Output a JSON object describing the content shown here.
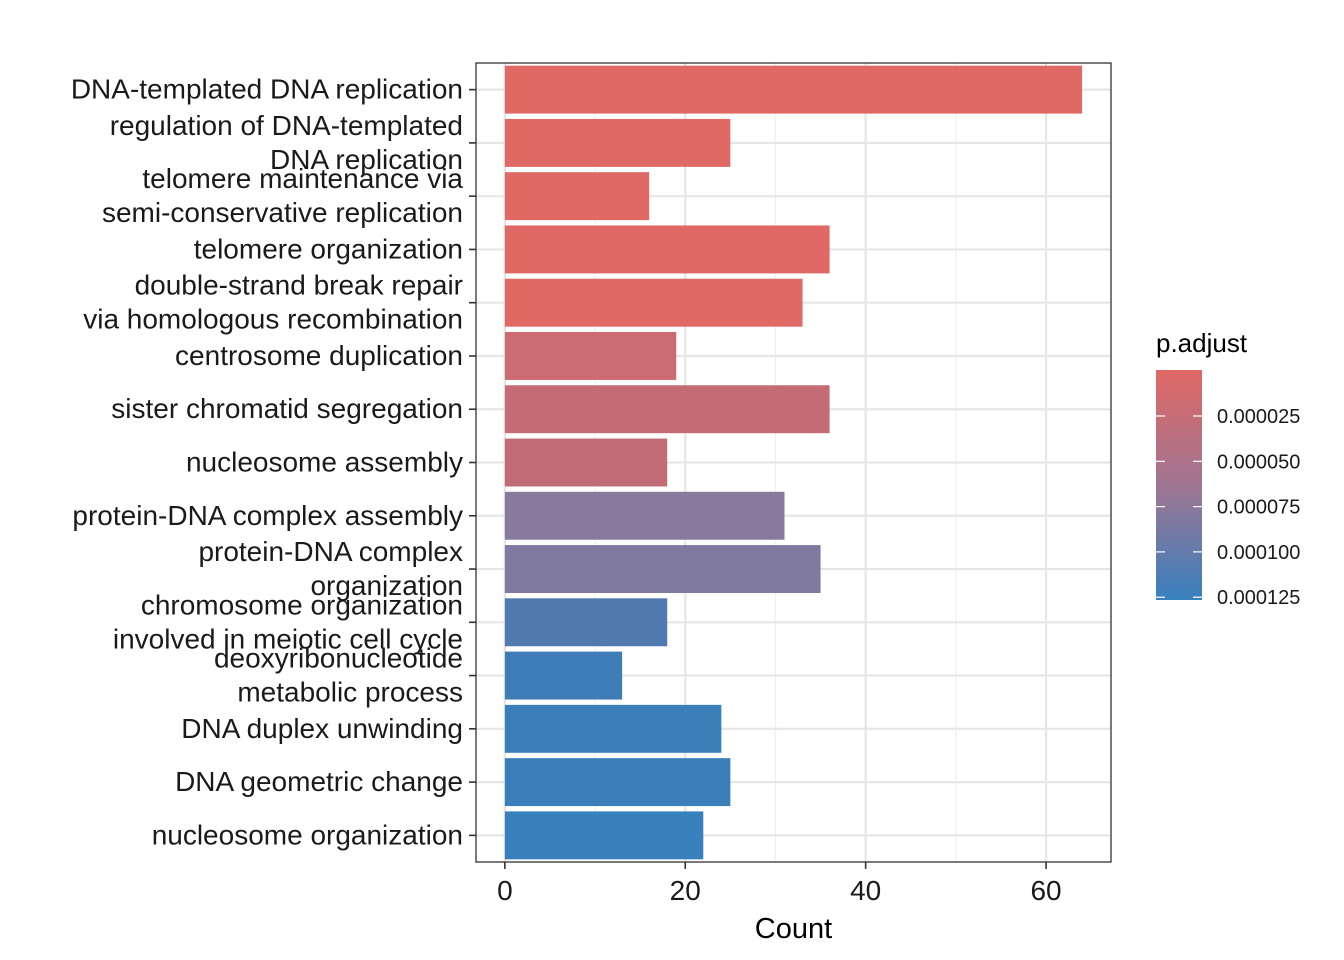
{
  "chart_data": {
    "type": "bar",
    "orientation": "horizontal",
    "categories": [
      [
        "DNA-templated DNA replication"
      ],
      [
        "regulation of DNA-templated",
        "DNA replication"
      ],
      [
        "telomere maintenance via",
        "semi-conservative replication"
      ],
      [
        "telomere organization"
      ],
      [
        "double-strand break repair",
        "via homologous recombination"
      ],
      [
        "centrosome duplication"
      ],
      [
        "sister chromatid segregation"
      ],
      [
        "nucleosome assembly"
      ],
      [
        "protein-DNA complex assembly"
      ],
      [
        "protein-DNA complex",
        "organization"
      ],
      [
        "chromosome organization",
        "involved in meiotic cell cycle"
      ],
      [
        "deoxyribonucleotide",
        "metabolic process"
      ],
      [
        "DNA duplex unwinding"
      ],
      [
        "DNA geometric change"
      ],
      [
        "nucleosome organization"
      ]
    ],
    "values": [
      64,
      25,
      16,
      36,
      33,
      19,
      36,
      18,
      31,
      35,
      18,
      13,
      24,
      25,
      22
    ],
    "bar_colors": [
      "#E06865",
      "#E06865",
      "#E06865",
      "#E06865",
      "#E06865",
      "#CC6B72",
      "#C46B74",
      "#C06B76",
      "#887A9C",
      "#817AA0",
      "#5079B0",
      "#3F7DB8",
      "#3A7FBA",
      "#3A7FBA",
      "#3981BC"
    ],
    "xlabel": "Count",
    "ylabel": "",
    "xlim": [
      -3.2,
      67.2
    ],
    "x_ticks": [
      0,
      20,
      40,
      60
    ],
    "grid": true,
    "legend": {
      "title": "p.adjust",
      "placement": "right",
      "labels": [
        "0.000025",
        "0.000050",
        "0.000075",
        "0.000100",
        "0.000125"
      ],
      "color_high": "#E06865",
      "color_low": "#3780BE",
      "color_mid": "#A07592"
    }
  }
}
